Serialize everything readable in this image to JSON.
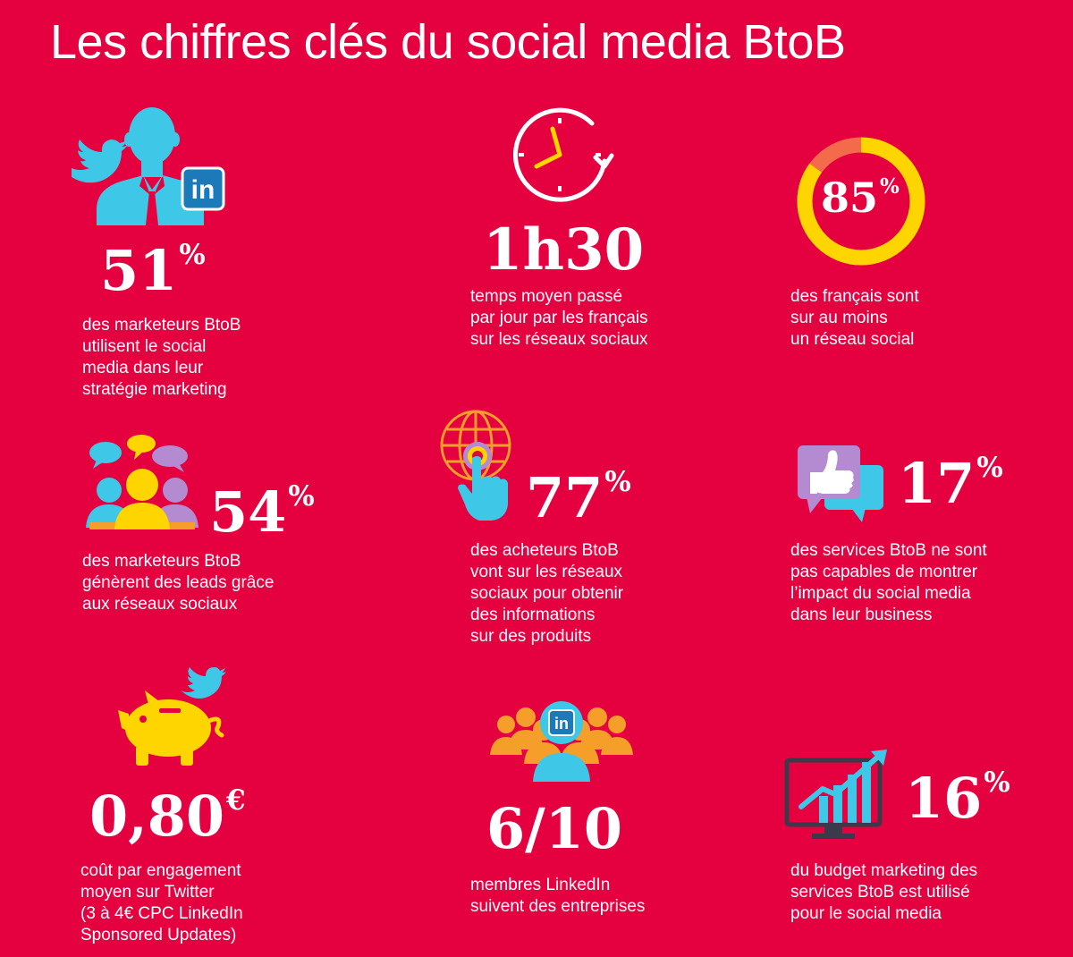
{
  "title": "Les chiffres clés du social media BtoB",
  "colors": {
    "background": "#e5003f",
    "cyan": "#3ec7e6",
    "yellow": "#ffd500",
    "orange": "#f59f2a",
    "purple": "#b48ad1",
    "white": "#ffffff"
  },
  "stats": [
    {
      "icon": "marketer-twitter-linkedin-icon",
      "value": "51",
      "suffix": "%",
      "lines": [
        "des marketeurs BtoB",
        "utilisent le social",
        "media dans leur",
        "stratégie marketing"
      ]
    },
    {
      "icon": "clock-icon",
      "value": "1h30",
      "suffix": "",
      "lines": [
        "temps moyen passé",
        "par jour par les français",
        "sur les réseaux sociaux"
      ]
    },
    {
      "icon": "donut-ring-icon",
      "value": "85",
      "suffix": "%",
      "ring_fraction": 0.85,
      "lines": [
        "des français sont",
        "sur au moins",
        "un réseau social"
      ]
    },
    {
      "icon": "speech-bubbles-people-icon",
      "value": "54",
      "suffix": "%",
      "lines": [
        "des marketeurs BtoB",
        "génèrent des leads grâce",
        "aux réseaux sociaux"
      ]
    },
    {
      "icon": "globe-click-icon",
      "value": "77",
      "suffix": "%",
      "lines": [
        "des acheteurs BtoB",
        "vont sur les réseaux",
        "sociaux pour obtenir",
        "des informations",
        "sur des produits"
      ]
    },
    {
      "icon": "thumbs-up-bubble-icon",
      "value": "17",
      "suffix": "%",
      "lines": [
        "des services BtoB ne sont",
        "pas capables de montrer",
        "l’impact du social media",
        "dans leur business"
      ]
    },
    {
      "icon": "piggy-bank-twitter-icon",
      "value": "0,80",
      "suffix": "€",
      "lines": [
        "coût par engagement",
        "moyen sur Twitter",
        "(3 à 4€ CPC LinkedIn",
        "Sponsored Updates)"
      ]
    },
    {
      "icon": "linkedin-crowd-icon",
      "value": "6/10",
      "suffix": "",
      "lines": [
        "membres LinkedIn",
        "suivent des entreprises"
      ]
    },
    {
      "icon": "growth-chart-monitor-icon",
      "value": "16",
      "suffix": "%",
      "lines": [
        "du budget marketing des",
        "services BtoB est utilisé",
        "pour le social media"
      ]
    }
  ],
  "linkedin_logo_text": "in"
}
